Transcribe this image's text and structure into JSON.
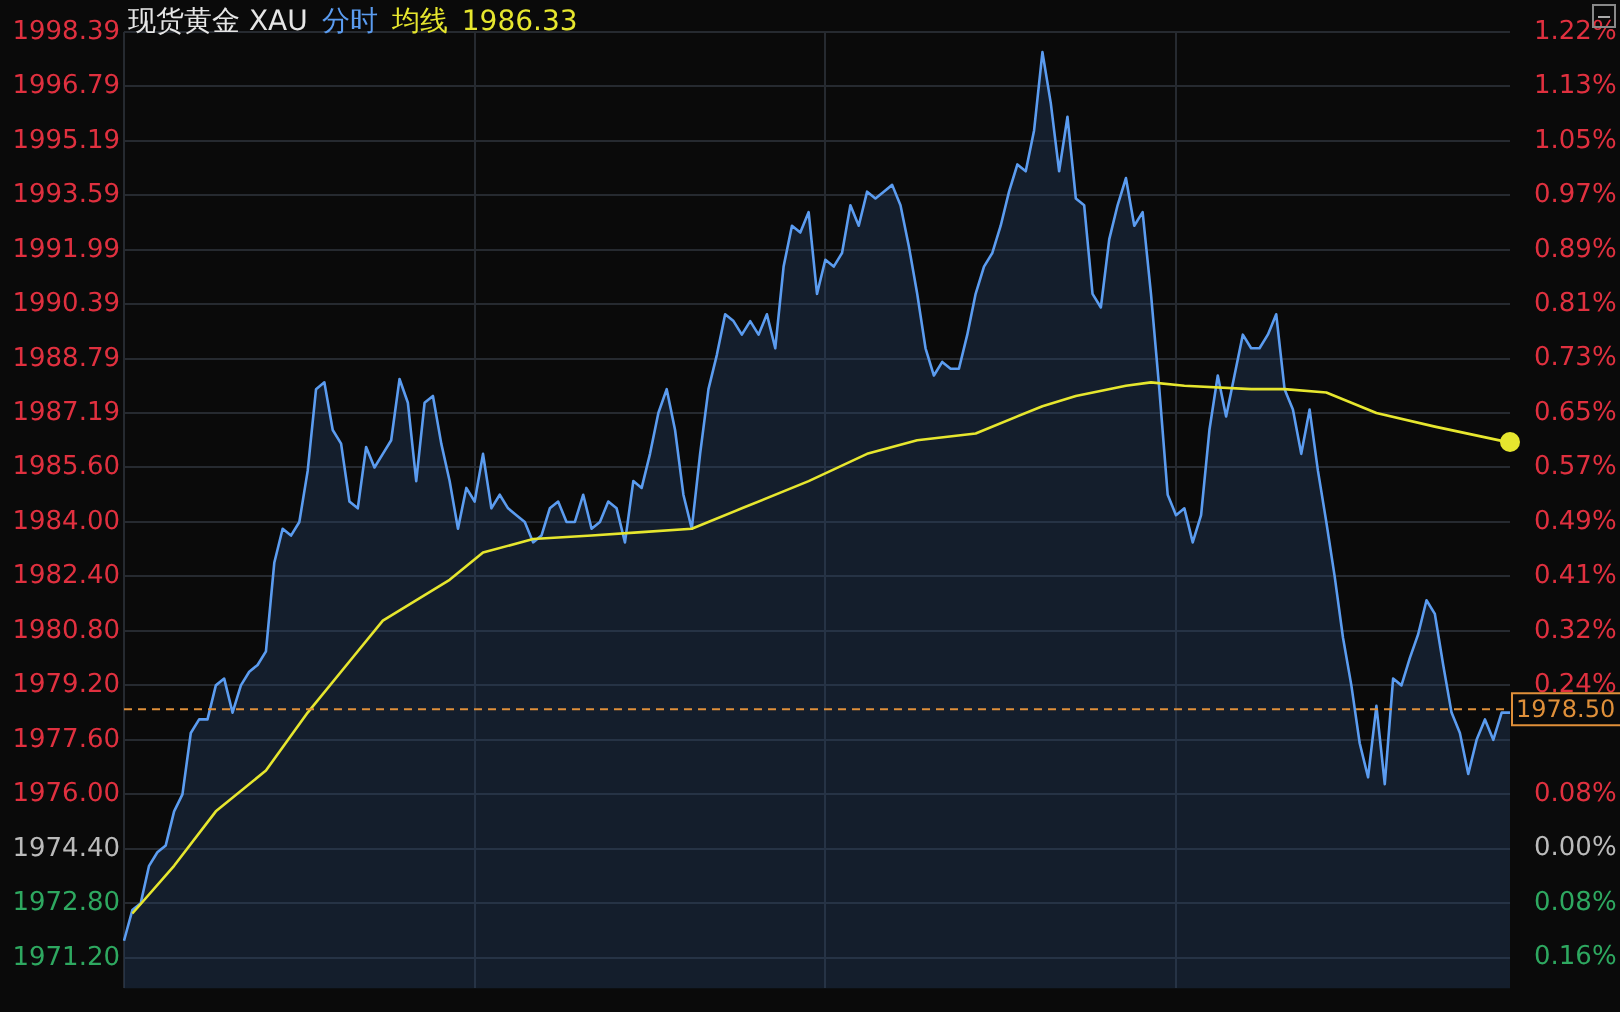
{
  "chart_data": {
    "type": "line",
    "title": "现货黄金 XAU",
    "annotations": [
      "1986.33"
    ],
    "grid": true,
    "tick_labels": "y",
    "categories": [
      null,
      null,
      null,
      null,
      null,
      null,
      null,
      null,
      null,
      null,
      null,
      null,
      null,
      null,
      null,
      null,
      null,
      null,
      null,
      null,
      null,
      null,
      null,
      null,
      null,
      null,
      null,
      null,
      null,
      null,
      null,
      null,
      null,
      null,
      null,
      null,
      null,
      null,
      null,
      null,
      null,
      null,
      null,
      null,
      null,
      null,
      null,
      null,
      null,
      null,
      null,
      null,
      null,
      null,
      null,
      null,
      null,
      null,
      null,
      null,
      null,
      null,
      null,
      null,
      null,
      null,
      null,
      null,
      null,
      null,
      null,
      null,
      null,
      null,
      null,
      null,
      null,
      null,
      null,
      null,
      null,
      null,
      null,
      null,
      null,
      null,
      null,
      null,
      null,
      null,
      null,
      null,
      null,
      null,
      null,
      null,
      null,
      null,
      null,
      null,
      null,
      null,
      null,
      null,
      null,
      null,
      null,
      null,
      null,
      null,
      null,
      null,
      null,
      null,
      null,
      null,
      null,
      null,
      null,
      null,
      null,
      null,
      null,
      null,
      null,
      null,
      null,
      null,
      null,
      null,
      null,
      null,
      null,
      null,
      null,
      null,
      null,
      null,
      null,
      null,
      null,
      null,
      null,
      null,
      null,
      null,
      null,
      null,
      null,
      null,
      null,
      null,
      null,
      null,
      null,
      null,
      null,
      null,
      null,
      null,
      null,
      null,
      null,
      null,
      null,
      null,
      null
    ],
    "ylim": [
      1970.3,
      1998.39
    ],
    "yticks": [
      {
        "value": 1971.2,
        "label": "1971.20"
      },
      {
        "value": 1972.8,
        "label": "1972.80"
      },
      {
        "value": 1974.4,
        "label": "1974.40"
      },
      {
        "value": 1976,
        "label": "1976.00"
      },
      {
        "value": 1977.6,
        "label": "1977.60"
      },
      {
        "value": 1979.2,
        "label": "1979.20"
      },
      {
        "value": 1980.8,
        "label": "1980.80"
      },
      {
        "value": 1982.4,
        "label": "1982.40"
      },
      {
        "value": 1984,
        "label": "1984.00"
      },
      {
        "value": 1985.6,
        "label": "1985.60"
      },
      1987.19,
      1988.79,
      1990.39,
      1991.99,
      1993.59,
      1995.19,
      1996.79,
      1998.39
    ],
    "y2lim": [
      -0.208,
      1.215
    ],
    "y2ticks": [
      {
        "value": -0.162,
        "label": "0.16%"
      },
      {
        "value": -0.081,
        "label": "0.08%"
      },
      {
        "value": 0,
        "label": "0.00%"
      },
      {
        "value": 0.081,
        "label": "0.08%"
      },
      {
        "value": 0.162,
        "label": null
      },
      {
        "value": 0.243,
        "label": "0.24%"
      },
      {
        "value": 0.324,
        "label": "0.32%"
      },
      {
        "value": 0.405,
        "label": "0.41%"
      },
      {
        "value": 0.486,
        "label": "0.49%"
      },
      {
        "value": 0.567,
        "label": "0.57%"
      },
      {
        "value": 0.648,
        "label": "0.65%"
      },
      {
        "value": 0.729,
        "label": "0.73%"
      },
      {
        "value": 0.81,
        "label": "0.81%"
      },
      {
        "value": 0.891,
        "label": "0.89%"
      },
      {
        "value": 0.972,
        "label": "0.97%"
      },
      {
        "value": 1.053,
        "label": "1.05%"
      },
      {
        "value": 1.134,
        "label": "1.13%"
      },
      {
        "value": 1.215,
        "label": "1.22%"
      }
    ],
    "ref_lines": [
      {
        "axis": "y",
        "value": 1978.5,
        "label": "1978.50",
        "color": "#e0903a",
        "line_style": "dashed"
      }
    ],
    "series": [
      {
        "name": "分时",
        "color": "#5b9cf0",
        "type": "area",
        "values": [
          1971.7,
          1972.6,
          1972.8,
          1973.9,
          1974.3,
          1974.5,
          1975.5,
          1976.0,
          1977.8,
          1978.2,
          1978.2,
          1979.2,
          1979.4,
          1978.4,
          1979.2,
          1979.6,
          1979.8,
          1980.2,
          1982.8,
          1983.8,
          1983.6,
          1984.0,
          1985.5,
          1987.9,
          1988.1,
          1986.7,
          1986.3,
          1984.6,
          1984.4,
          1986.2,
          1985.6,
          1986.0,
          1986.4,
          1988.2,
          1987.5,
          1985.2,
          1987.5,
          1987.7,
          1986.3,
          1985.2,
          1983.8,
          1985.0,
          1984.6,
          1986.0,
          1984.4,
          1984.8,
          1984.4,
          1984.2,
          1984.0,
          1983.4,
          1983.6,
          1984.4,
          1984.6,
          1984.0,
          1984.0,
          1984.8,
          1983.8,
          1984.0,
          1984.6,
          1984.4,
          1983.4,
          1985.2,
          1985.0,
          1986.0,
          1987.2,
          1987.9,
          1986.7,
          1984.8,
          1983.8,
          1986.0,
          1987.9,
          1988.9,
          1990.1,
          1989.9,
          1989.5,
          1989.9,
          1989.5,
          1990.1,
          1989.1,
          1991.5,
          1992.7,
          1992.5,
          1993.1,
          1990.7,
          1991.7,
          1991.5,
          1991.9,
          1993.3,
          1992.7,
          1993.7,
          1993.5,
          1993.7,
          1993.9,
          1993.3,
          1992.1,
          1990.7,
          1989.1,
          1988.3,
          1988.7,
          1988.5,
          1988.5,
          1989.5,
          1990.7,
          1991.5,
          1991.9,
          1992.7,
          1993.7,
          1994.5,
          1994.3,
          1995.5,
          1997.8,
          1996.3,
          1994.3,
          1995.9,
          1993.5,
          1993.3,
          1990.7,
          1990.3,
          1992.3,
          1993.3,
          1994.1,
          1992.7,
          1993.1,
          1990.7,
          1987.9,
          1984.8,
          1984.2,
          1984.4,
          1983.4,
          1984.2,
          1986.7,
          1988.3,
          1987.1,
          1988.3,
          1989.5,
          1989.1,
          1989.1,
          1989.5,
          1990.1,
          1987.9,
          1987.3,
          1986.0,
          1987.3,
          1985.5,
          1984.0,
          1982.4,
          1980.6,
          1979.2,
          1977.5,
          1976.5,
          1978.6,
          1976.3,
          1979.4,
          1979.2,
          1980.0,
          1980.7,
          1981.7,
          1981.3,
          1979.8,
          1978.4,
          1977.8,
          1976.6,
          1977.6,
          1978.2,
          1977.6,
          1978.4,
          1978.4
        ]
      },
      {
        "name": "均线",
        "color": "#e6e62e",
        "type": "line",
        "values": [
          null,
          1972.5,
          null,
          null,
          null,
          null,
          1973.9,
          null,
          null,
          null,
          null,
          1975.5,
          null,
          null,
          null,
          null,
          null,
          1976.7,
          null,
          null,
          null,
          null,
          1978.4,
          null,
          null,
          null,
          null,
          1979.9,
          null,
          null,
          null,
          1981.1,
          null,
          null,
          null,
          null,
          null,
          null,
          null,
          1982.3,
          null,
          null,
          null,
          1983.1,
          null,
          null,
          null,
          null,
          null,
          1983.5,
          null,
          null,
          null,
          null,
          null,
          null,
          1983.6,
          null,
          null,
          null,
          null,
          null,
          1983.7,
          null,
          null,
          null,
          null,
          null,
          1983.8,
          null,
          null,
          null,
          null,
          null,
          1984.4,
          null,
          null,
          null,
          null,
          null,
          null,
          null,
          1985.2,
          null,
          null,
          null,
          null,
          null,
          null,
          1986.0,
          null,
          null,
          null,
          null,
          null,
          1986.4,
          null,
          null,
          null,
          null,
          null,
          null,
          1986.6,
          null,
          null,
          null,
          null,
          null,
          null,
          null,
          1987.4,
          null,
          null,
          null,
          1987.7,
          null,
          null,
          null,
          null,
          null,
          1988.0,
          null,
          null,
          1988.1,
          null,
          null,
          null,
          1988.0,
          null,
          null,
          null,
          null,
          null,
          null,
          null,
          1987.9,
          null,
          null,
          null,
          1987.9,
          null,
          null,
          null,
          null,
          1987.8,
          null,
          null,
          null,
          null,
          null,
          1987.2,
          null,
          null,
          null,
          null,
          null,
          null,
          1986.8,
          null,
          null,
          null,
          null,
          null,
          null,
          null,
          null,
          1986.33
        ]
      }
    ]
  }
}
